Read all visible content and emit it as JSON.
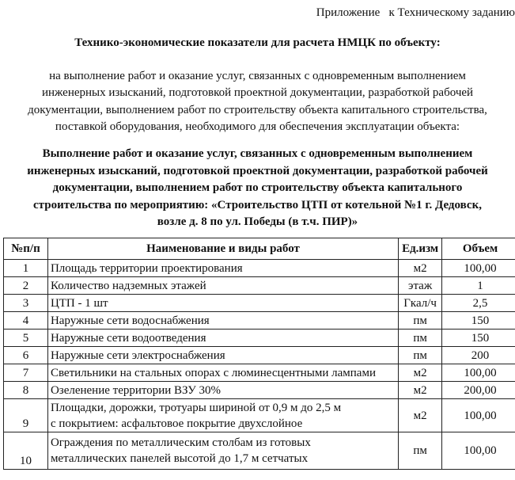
{
  "header": {
    "appendix": "Приложение   к Техническому заданию"
  },
  "title": "Технико-экономические показатели для расчета НМЦК по объекту:",
  "intro_lines": [
    "на выполнение работ и оказание услуг, связанных с одновременным выполнением",
    "инженерных изысканий, подготовкой проектной документации, разработкой рабочей",
    "документации, выполнением работ по строительству объекта капитального строительства,",
    "поставкой оборудования, необходимого для обеспечения эксплуатации объекта:"
  ],
  "subject_lines": [
    "Выполнение работ и оказание услуг, связанных с одновременным выполнением",
    "инженерных изысканий, подготовкой проектной документации, разработкой рабочей",
    "документации, выполнением работ по строительству объекта капитального",
    "строительства по мероприятию: «Строительство ЦТП от котельной №1 г. Дедовск,",
    "возле д. 8 по ул. Победы (в т.ч. ПИР)»"
  ],
  "table": {
    "headers": [
      "№п/п",
      "Наименование и виды работ",
      "Ед.изм",
      "Объем"
    ],
    "rows": [
      {
        "n": "1",
        "name": "Площадь территории проектирования",
        "unit": "м2",
        "value": "100,00"
      },
      {
        "n": "2",
        "name": "Количество надземных этажей",
        "unit": "этаж",
        "value": "1"
      },
      {
        "n": "3",
        "name": "ЦТП - 1 шт",
        "unit": "Гкал/ч",
        "value": "2,5"
      },
      {
        "n": "4",
        "name": "Наружные сети водоснабжения",
        "unit": "пм",
        "value": "150"
      },
      {
        "n": "5",
        "name": "Наружные сети водоотведения",
        "unit": "пм",
        "value": "150"
      },
      {
        "n": "6",
        "name": "Наружные сети электроснабжения",
        "unit": "пм",
        "value": "200"
      },
      {
        "n": "7",
        "name": "Светильники на стальных опорах с люминесцентными лампами",
        "unit": "м2",
        "value": "100,00"
      },
      {
        "n": "8",
        "name": "Озеленение территории ВЗУ 30%",
        "unit": "м2",
        "value": "200,00"
      },
      {
        "n": "9",
        "name_lines": [
          "Площадки, дорожки, тротуары шириной от 0,9 м до 2,5 м",
          "с покрытием: асфальтовое покрытие двухслойное"
        ],
        "unit": "м2",
        "value": "100,00"
      },
      {
        "n": "10",
        "name_lines": [
          "Ограждения по металлическим столбам из готовых",
          "металлических панелей высотой до 1,7 м сетчатых"
        ],
        "unit": "пм",
        "value": "100,00"
      }
    ]
  }
}
